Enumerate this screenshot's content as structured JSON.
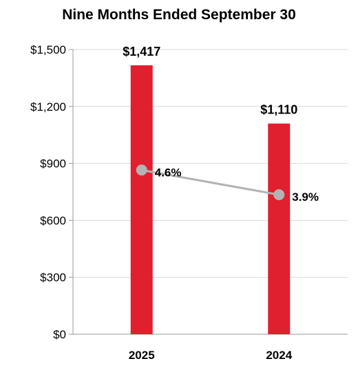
{
  "chart_data": {
    "type": "bar",
    "title": "Nine Months Ended September 30",
    "categories": [
      "2025",
      "2024"
    ],
    "values": [
      1417,
      1110
    ],
    "value_labels": [
      "$1,417",
      "$1,110"
    ],
    "y_ticks": [
      "$0",
      "$300",
      "$600",
      "$900",
      "$1,200",
      "$1,500"
    ],
    "ylim": [
      0,
      1500
    ],
    "bar_color": "#e0202e",
    "grid": true,
    "line_series": {
      "values_pct": [
        4.6,
        3.9
      ],
      "labels": [
        "4.6%",
        "3.9%"
      ],
      "color": "#b3b3b3"
    }
  }
}
